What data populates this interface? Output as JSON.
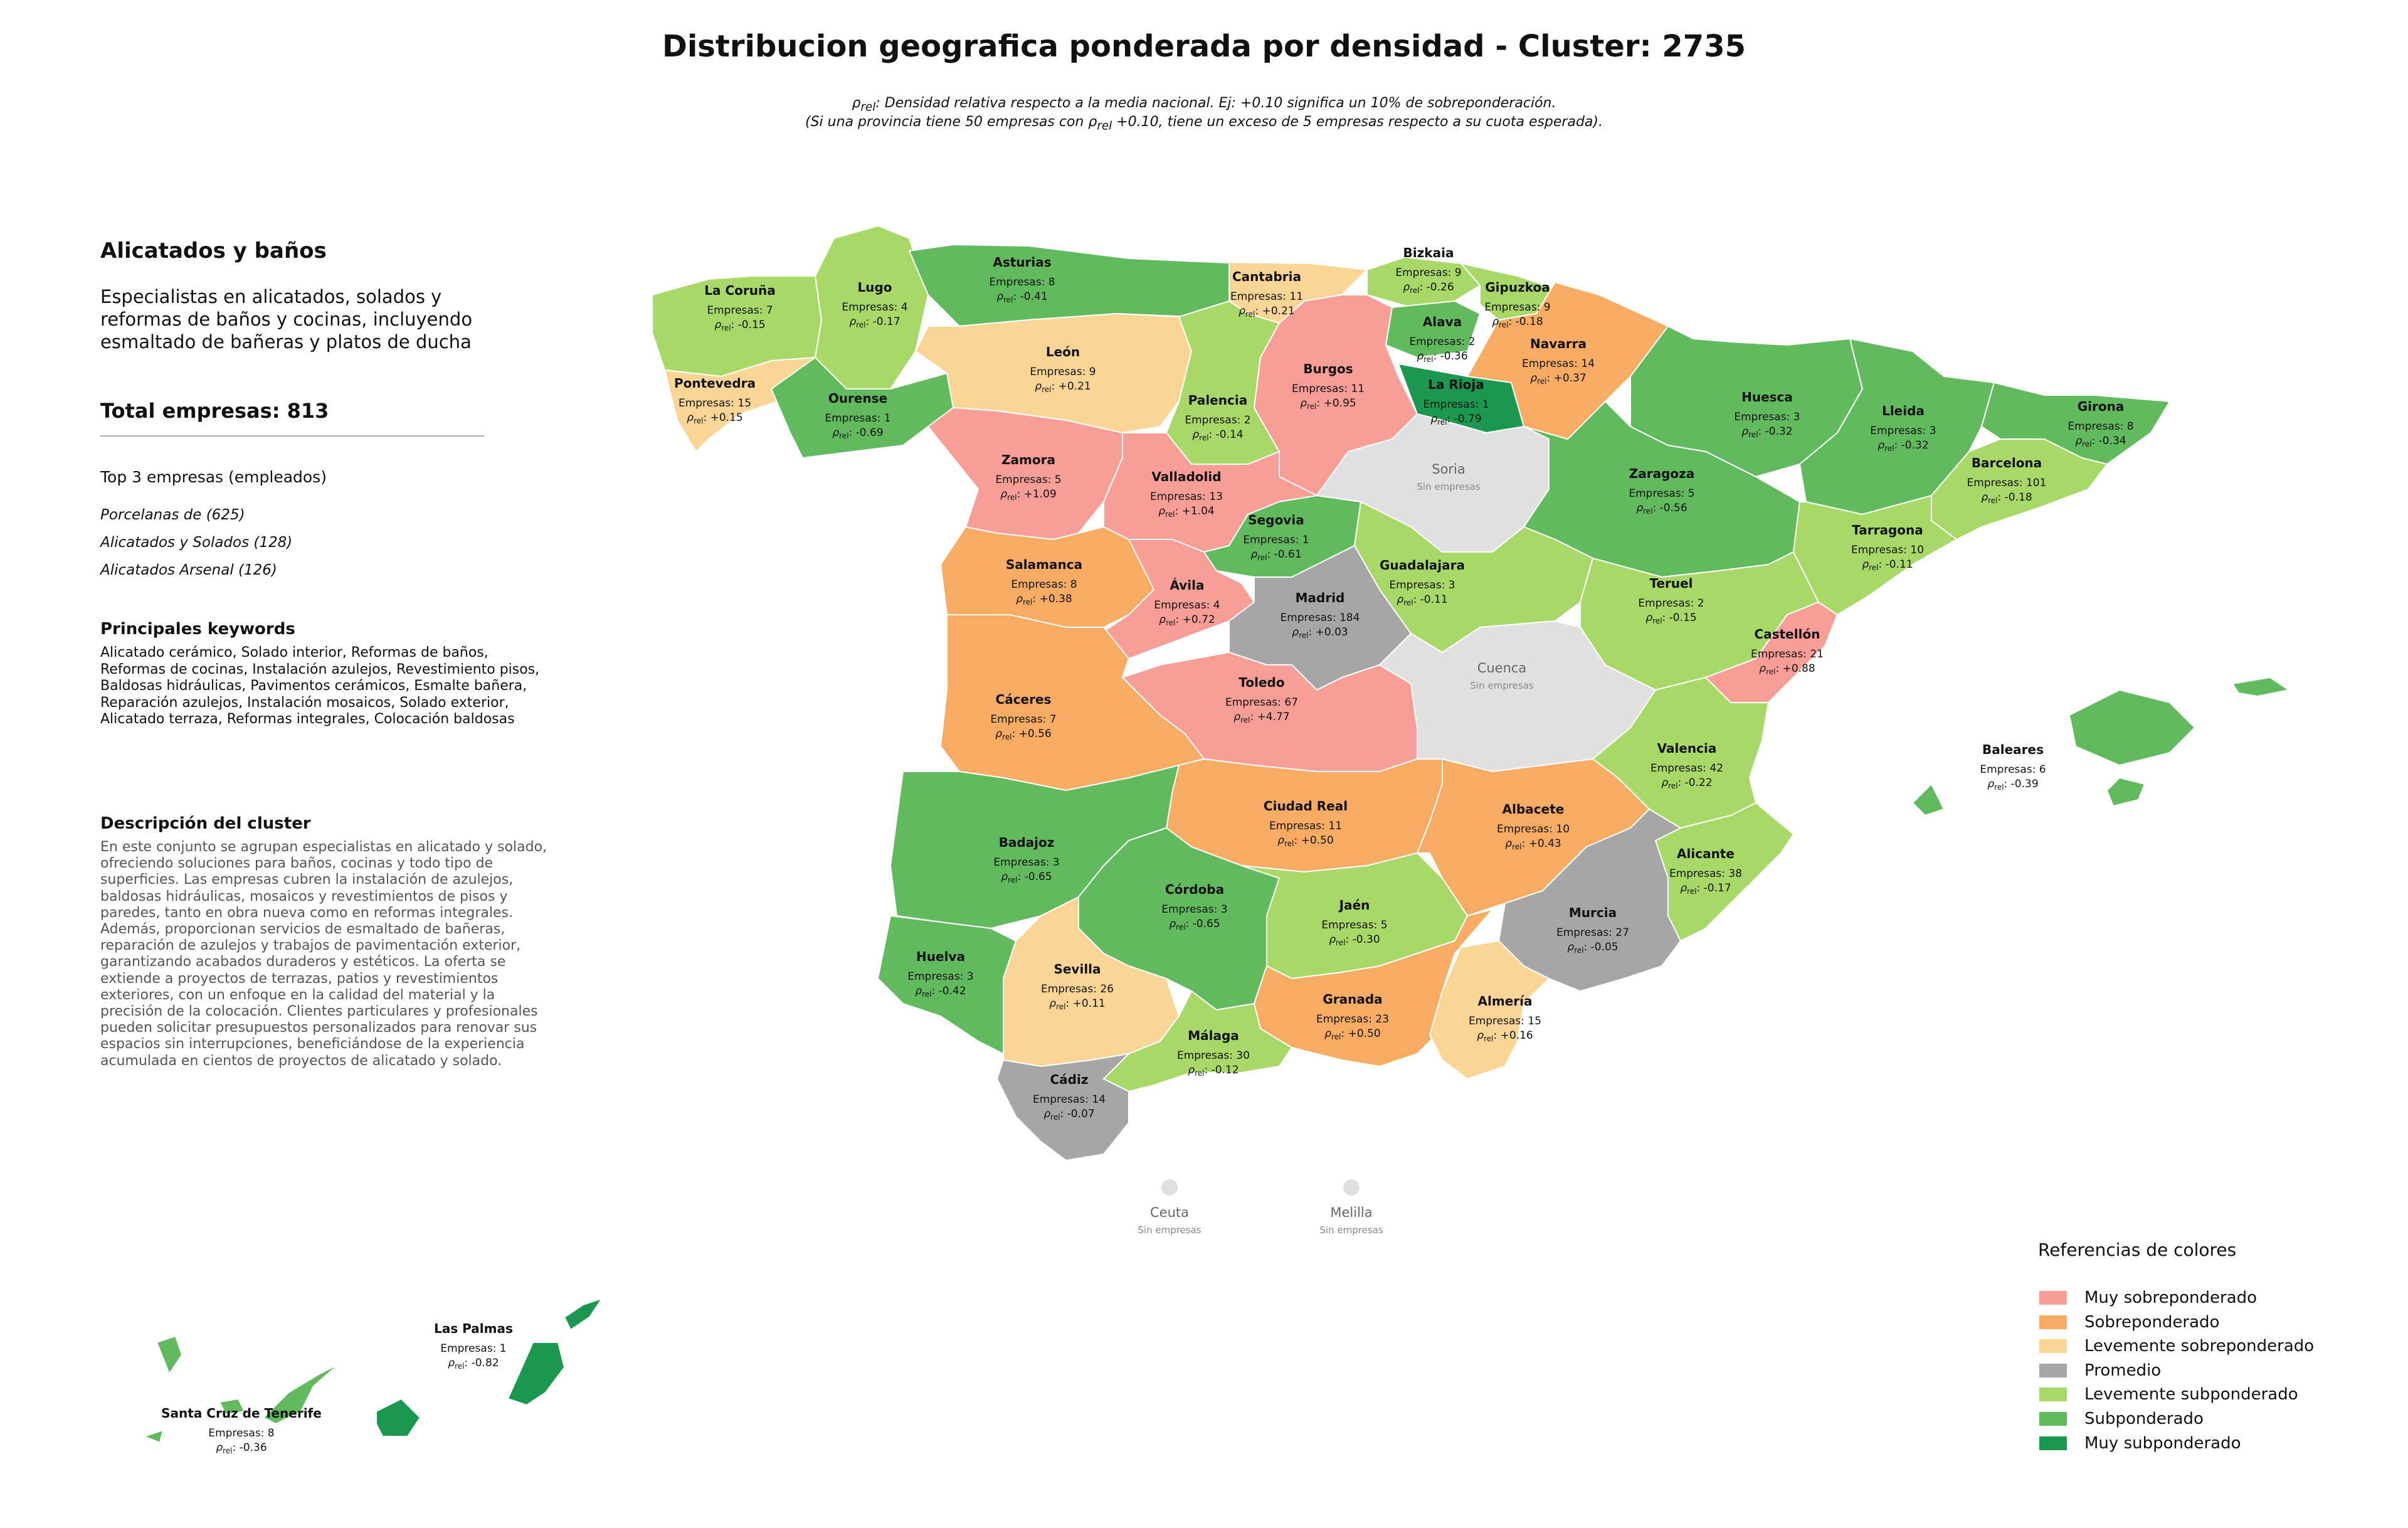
{
  "header": {
    "title": "Distribucion geografica ponderada por densidad - Cluster: 2735",
    "note_line1": "ρrel: Densidad relativa respecto a la media nacional. Ej: +0.10 significa un 10% de sobreponderación.",
    "note_line2": "(Si una provincia tiene 50 empresas con ρrel +0.10, tiene un exceso de 5 empresas respecto a su cuota esperada)."
  },
  "panel": {
    "cluster_name": "Alicatados y baños",
    "short_description": "Especialistas en alicatados, solados y reformas de baños y cocinas, incluyendo esmaltado de bañeras y platos de ducha",
    "total_label": "Total empresas: 813",
    "top3_title": "Top 3 empresas (empleados)",
    "top3": [
      "Porcelanas de (625)",
      "Alicatados y Solados (128)",
      "Alicatados Arsenal (126)"
    ],
    "keywords_title": "Principales keywords",
    "keywords": "Alicatado cerámico, Solado interior, Reformas de baños, Reformas de cocinas, Instalación azulejos, Revestimiento pisos, Baldosas hidráulicas, Pavimentos cerámicos, Esmalte bañera, Reparación azulejos, Instalación mosaicos, Solado exterior, Alicatado terraza, Reformas integrales, Colocación baldosas",
    "description_title": "Descripción del cluster",
    "description": "En este conjunto se agrupan especialistas en alicatado y solado, ofreciendo soluciones para baños, cocinas y todo tipo de superficies. Las empresas cubren la instalación de azulejos, baldosas hidráulicas, mosaicos y revestimientos de pisos y paredes, tanto en obra nueva como en reformas integrales. Además, proporcionan servicios de esmaltado de bañeras, reparación de azulejos y trabajos de pavimentación exterior, garantizando acabados duraderos y estéticos. La oferta se extiende a proyectos de terrazas, patios y revestimientos exteriores, con un enfoque en la calidad del material y la precisión de la colocación. Clientes particulares y profesionales pueden solicitar presupuestos personalizados para renovar sus espacios sin interrupciones, beneficiándose de la experiencia acumulada en cientos de proyectos de alicatado y solado."
  },
  "legend": {
    "title": "Referencias de colores",
    "items": [
      {
        "label": "Muy sobreponderado",
        "color": "#f99d97"
      },
      {
        "label": "Sobreponderado",
        "color": "#f8ab62"
      },
      {
        "label": "Levemente sobreponderado",
        "color": "#fbd596"
      },
      {
        "label": "Promedio",
        "color": "#a6a6a6"
      },
      {
        "label": "Levemente subponderado",
        "color": "#a8d868"
      },
      {
        "label": "Subponderado",
        "color": "#62ba5e"
      },
      {
        "label": "Muy subponderado",
        "color": "#1a9850"
      }
    ],
    "no_data_color": "#e0e0e0"
  },
  "map": {
    "count_prefix": "Empresas: ",
    "rho_symbol": "ρ",
    "rho_sub": "rel",
    "no_companies": "Sin empresas",
    "provinces": [
      {
        "name": "La Coruña",
        "n": 7,
        "rho": "-0.15",
        "cls": 4
      },
      {
        "name": "Lugo",
        "n": 4,
        "rho": "-0.17",
        "cls": 4
      },
      {
        "name": "Asturias",
        "n": 8,
        "rho": "-0.41",
        "cls": 5
      },
      {
        "name": "Cantabria",
        "n": 11,
        "rho": "+0.21",
        "cls": 2
      },
      {
        "name": "Bizkaia",
        "n": 9,
        "rho": "-0.26",
        "cls": 4
      },
      {
        "name": "Gipuzkoa",
        "n": 9,
        "rho": "-0.18",
        "cls": 4
      },
      {
        "name": "Alava",
        "n": 2,
        "rho": "-0.36",
        "cls": 5
      },
      {
        "name": "Navarra",
        "n": 14,
        "rho": "+0.37",
        "cls": 1
      },
      {
        "name": "Pontevedra",
        "n": 15,
        "rho": "+0.15",
        "cls": 2
      },
      {
        "name": "Ourense",
        "n": 1,
        "rho": "-0.69",
        "cls": 5
      },
      {
        "name": "León",
        "n": 9,
        "rho": "+0.21",
        "cls": 2
      },
      {
        "name": "Palencia",
        "n": 2,
        "rho": "-0.14",
        "cls": 4
      },
      {
        "name": "Burgos",
        "n": 11,
        "rho": "+0.95",
        "cls": 0
      },
      {
        "name": "La Rioja",
        "n": 1,
        "rho": "-0.79",
        "cls": 6
      },
      {
        "name": "Huesca",
        "n": 3,
        "rho": "-0.32",
        "cls": 5
      },
      {
        "name": "Lleida",
        "n": 3,
        "rho": "-0.32",
        "cls": 5
      },
      {
        "name": "Girona",
        "n": 8,
        "rho": "-0.34",
        "cls": 5
      },
      {
        "name": "Barcelona",
        "n": 101,
        "rho": "-0.18",
        "cls": 4
      },
      {
        "name": "Zamora",
        "n": 5,
        "rho": "+1.09",
        "cls": 0
      },
      {
        "name": "Valladolid",
        "n": 13,
        "rho": "+1.04",
        "cls": 0
      },
      {
        "name": "Soria",
        "n": null,
        "rho": null,
        "cls": -1
      },
      {
        "name": "Zaragoza",
        "n": 5,
        "rho": "-0.56",
        "cls": 5
      },
      {
        "name": "Segovia",
        "n": 1,
        "rho": "-0.61",
        "cls": 5
      },
      {
        "name": "Tarragona",
        "n": 10,
        "rho": "-0.11",
        "cls": 4
      },
      {
        "name": "Salamanca",
        "n": 8,
        "rho": "+0.38",
        "cls": 1
      },
      {
        "name": "Guadalajara",
        "n": 3,
        "rho": "-0.11",
        "cls": 4
      },
      {
        "name": "Ávila",
        "n": 4,
        "rho": "+0.72",
        "cls": 0
      },
      {
        "name": "Madrid",
        "n": 184,
        "rho": "+0.03",
        "cls": 3
      },
      {
        "name": "Teruel",
        "n": 2,
        "rho": "-0.15",
        "cls": 4
      },
      {
        "name": "Castellón",
        "n": 21,
        "rho": "+0.88",
        "cls": 0
      },
      {
        "name": "Cáceres",
        "n": 7,
        "rho": "+0.56",
        "cls": 1
      },
      {
        "name": "Toledo",
        "n": 67,
        "rho": "+4.77",
        "cls": 0
      },
      {
        "name": "Cuenca",
        "n": null,
        "rho": null,
        "cls": -1
      },
      {
        "name": "Valencia",
        "n": 42,
        "rho": "-0.22",
        "cls": 4
      },
      {
        "name": "Baleares",
        "n": 6,
        "rho": "-0.39",
        "cls": 5
      },
      {
        "name": "Ciudad Real",
        "n": 11,
        "rho": "+0.50",
        "cls": 1
      },
      {
        "name": "Albacete",
        "n": 10,
        "rho": "+0.43",
        "cls": 1
      },
      {
        "name": "Badajoz",
        "n": 3,
        "rho": "-0.65",
        "cls": 5
      },
      {
        "name": "Córdoba",
        "n": 3,
        "rho": "-0.65",
        "cls": 5
      },
      {
        "name": "Jaén",
        "n": 5,
        "rho": "-0.30",
        "cls": 4
      },
      {
        "name": "Alicante",
        "n": 38,
        "rho": "-0.17",
        "cls": 4
      },
      {
        "name": "Murcia",
        "n": 27,
        "rho": "-0.05",
        "cls": 3
      },
      {
        "name": "Huelva",
        "n": 3,
        "rho": "-0.42",
        "cls": 5
      },
      {
        "name": "Sevilla",
        "n": 26,
        "rho": "+0.11",
        "cls": 2
      },
      {
        "name": "Granada",
        "n": 23,
        "rho": "+0.50",
        "cls": 1
      },
      {
        "name": "Almería",
        "n": 15,
        "rho": "+0.16",
        "cls": 2
      },
      {
        "name": "Málaga",
        "n": 30,
        "rho": "-0.12",
        "cls": 4
      },
      {
        "name": "Cádiz",
        "n": 14,
        "rho": "-0.07",
        "cls": 3
      },
      {
        "name": "Ceuta",
        "n": null,
        "rho": null,
        "cls": -1
      },
      {
        "name": "Melilla",
        "n": null,
        "rho": null,
        "cls": -1
      },
      {
        "name": "Las Palmas",
        "n": 1,
        "rho": "-0.82",
        "cls": 6
      },
      {
        "name": "Santa Cruz de Tenerife",
        "n": 8,
        "rho": "-0.36",
        "cls": 5
      }
    ]
  }
}
